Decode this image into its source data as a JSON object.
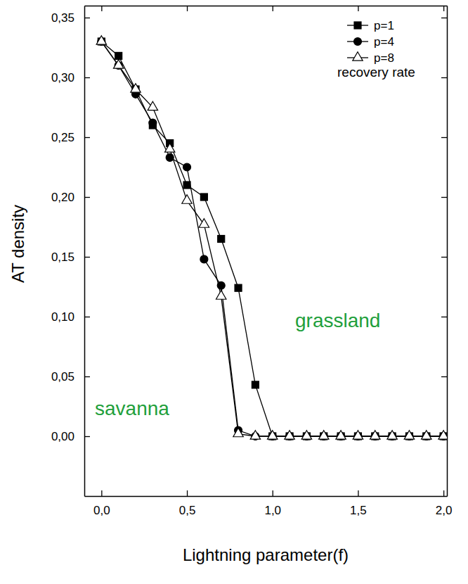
{
  "chart_data": {
    "type": "line",
    "x_label": "Lightning parameter(f)",
    "y_label": "AT density",
    "legend_title": "recovery rate",
    "annotations": [
      {
        "text": "savanna",
        "color": "#1fa03c"
      },
      {
        "text": "grassland",
        "color": "#1fa03c"
      }
    ],
    "x": [
      0,
      0.1,
      0.2,
      0.3,
      0.4,
      0.5,
      0.6,
      0.7,
      0.8,
      0.9,
      1.0,
      1.1,
      1.2,
      1.3,
      1.4,
      1.5,
      1.6,
      1.7,
      1.8,
      1.9,
      2.0
    ],
    "series": [
      {
        "name": "p=1",
        "color": "#000000",
        "marker": "square",
        "values": [
          0.33,
          0.318,
          0.29,
          0.26,
          0.245,
          0.21,
          0.2,
          0.165,
          0.124,
          0.043,
          0,
          0,
          0,
          0,
          0,
          0,
          0,
          0,
          0,
          0,
          0
        ]
      },
      {
        "name": "p=4",
        "color": "#000000",
        "marker": "circle",
        "values": [
          0.33,
          0.31,
          0.286,
          0.262,
          0.233,
          0.225,
          0.148,
          0.126,
          0.005,
          0,
          0,
          0,
          0,
          0,
          0,
          0,
          0,
          0,
          0,
          0,
          0
        ]
      },
      {
        "name": "p=8",
        "color": "#000000",
        "marker": "triangle-open",
        "values": [
          0.33,
          0.31,
          0.29,
          0.275,
          0.24,
          0.197,
          0.177,
          0.117,
          0.002,
          0,
          0,
          0,
          0,
          0,
          0,
          0,
          0,
          0,
          0,
          0,
          0
        ]
      }
    ],
    "xlim": [
      -0.1,
      2.02
    ],
    "ylim": [
      -0.05,
      0.36
    ],
    "xticks": [
      {
        "value": 0,
        "label": "0,0"
      },
      {
        "value": 0.5,
        "label": "0,5"
      },
      {
        "value": 1.0,
        "label": "1,0"
      },
      {
        "value": 1.5,
        "label": "1,5"
      },
      {
        "value": 2.0,
        "label": "2,0"
      }
    ],
    "yticks": [
      {
        "value": 0,
        "label": "0,00"
      },
      {
        "value": 0.05,
        "label": "0,05"
      },
      {
        "value": 0.1,
        "label": "0,10"
      },
      {
        "value": 0.15,
        "label": "0,15"
      },
      {
        "value": 0.2,
        "label": "0,20"
      },
      {
        "value": 0.25,
        "label": "0,25"
      },
      {
        "value": 0.3,
        "label": "0,30"
      },
      {
        "value": 0.35,
        "label": "0,35"
      }
    ],
    "grid": false,
    "legend": "upper right"
  }
}
